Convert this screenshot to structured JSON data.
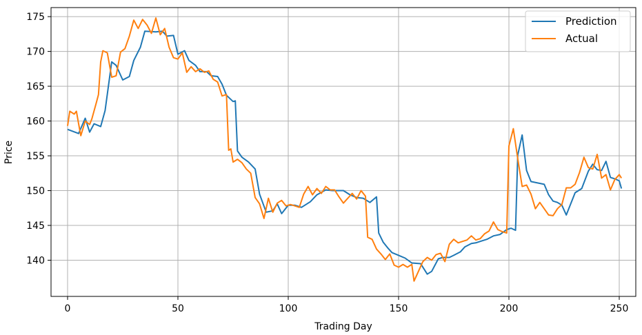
{
  "chart_data": {
    "type": "line",
    "title": "",
    "xlabel": "Trading Day",
    "ylabel": "Price",
    "xlim": [
      -7.5,
      257.5
    ],
    "ylim": [
      134.8,
      176.3
    ],
    "xticks": [
      0,
      50,
      100,
      150,
      200,
      250
    ],
    "yticks": [
      140,
      145,
      150,
      155,
      160,
      165,
      170,
      175
    ],
    "grid": true,
    "legend": {
      "placement": "top-right"
    },
    "series": [
      {
        "name": "Prediction",
        "color": "#1f77b4",
        "points": [
          [
            0,
            158.8
          ],
          [
            5,
            158.2
          ],
          [
            8,
            160.4
          ],
          [
            10,
            158.4
          ],
          [
            12,
            159.6
          ],
          [
            15,
            159.2
          ],
          [
            17,
            161.5
          ],
          [
            20,
            168.5
          ],
          [
            22,
            168.0
          ],
          [
            25,
            165.9
          ],
          [
            28,
            166.4
          ],
          [
            30,
            168.7
          ],
          [
            33,
            170.6
          ],
          [
            35,
            172.9
          ],
          [
            40,
            172.8
          ],
          [
            43,
            172.9
          ],
          [
            45,
            172.2
          ],
          [
            48,
            172.3
          ],
          [
            50,
            169.6
          ],
          [
            53,
            170.1
          ],
          [
            55,
            168.7
          ],
          [
            58,
            168.0
          ],
          [
            60,
            167.1
          ],
          [
            63,
            167.1
          ],
          [
            65,
            166.5
          ],
          [
            68,
            166.4
          ],
          [
            70,
            165.3
          ],
          [
            72,
            163.7
          ],
          [
            75,
            162.8
          ],
          [
            76,
            162.9
          ],
          [
            77,
            155.7
          ],
          [
            79,
            154.8
          ],
          [
            82,
            154.1
          ],
          [
            85,
            153.1
          ],
          [
            87,
            149.5
          ],
          [
            90,
            146.9
          ],
          [
            93,
            147.1
          ],
          [
            95,
            148.1
          ],
          [
            97,
            146.7
          ],
          [
            100,
            147.9
          ],
          [
            103,
            147.9
          ],
          [
            106,
            147.6
          ],
          [
            110,
            148.4
          ],
          [
            113,
            149.4
          ],
          [
            117,
            150.1
          ],
          [
            120,
            150.0
          ],
          [
            123,
            150.0
          ],
          [
            125,
            150.0
          ],
          [
            128,
            149.4
          ],
          [
            131,
            149.0
          ],
          [
            134,
            148.9
          ],
          [
            137,
            148.3
          ],
          [
            140,
            149.1
          ],
          [
            141,
            143.9
          ],
          [
            143,
            142.6
          ],
          [
            145,
            141.8
          ],
          [
            147,
            141.1
          ],
          [
            150,
            140.7
          ],
          [
            153,
            140.3
          ],
          [
            156,
            139.6
          ],
          [
            160,
            139.5
          ],
          [
            163,
            138.0
          ],
          [
            165,
            138.4
          ],
          [
            168,
            140.2
          ],
          [
            170,
            140.4
          ],
          [
            173,
            140.4
          ],
          [
            175,
            140.7
          ],
          [
            178,
            141.2
          ],
          [
            180,
            141.9
          ],
          [
            183,
            142.4
          ],
          [
            185,
            142.5
          ],
          [
            188,
            142.8
          ],
          [
            190,
            143.0
          ],
          [
            193,
            143.5
          ],
          [
            196,
            143.7
          ],
          [
            199,
            144.4
          ],
          [
            201,
            144.6
          ],
          [
            203,
            144.3
          ],
          [
            204,
            155.1
          ],
          [
            206,
            158.0
          ],
          [
            208,
            152.9
          ],
          [
            210,
            151.3
          ],
          [
            213,
            151.1
          ],
          [
            216,
            150.9
          ],
          [
            218,
            149.4
          ],
          [
            220,
            148.5
          ],
          [
            222,
            148.3
          ],
          [
            224,
            147.9
          ],
          [
            226,
            146.5
          ],
          [
            228,
            148.1
          ],
          [
            230,
            149.7
          ],
          [
            233,
            150.3
          ],
          [
            236,
            152.8
          ],
          [
            238,
            153.8
          ],
          [
            240,
            153.0
          ],
          [
            242,
            152.9
          ],
          [
            244,
            154.2
          ],
          [
            246,
            151.9
          ],
          [
            248,
            151.7
          ],
          [
            250,
            151.4
          ],
          [
            251,
            150.3
          ]
        ]
      },
      {
        "name": "Actual",
        "color": "#ff7f0e",
        "points": [
          [
            0,
            159.3
          ],
          [
            1,
            161.4
          ],
          [
            3,
            161.0
          ],
          [
            4,
            161.4
          ],
          [
            5,
            159.6
          ],
          [
            6,
            157.9
          ],
          [
            8,
            160.0
          ],
          [
            10,
            159.5
          ],
          [
            11,
            160.3
          ],
          [
            13,
            162.6
          ],
          [
            14,
            163.8
          ],
          [
            15,
            168.5
          ],
          [
            16,
            170.1
          ],
          [
            18,
            169.8
          ],
          [
            20,
            166.3
          ],
          [
            22,
            166.5
          ],
          [
            24,
            169.9
          ],
          [
            26,
            170.4
          ],
          [
            28,
            172.2
          ],
          [
            30,
            174.5
          ],
          [
            32,
            173.3
          ],
          [
            34,
            174.6
          ],
          [
            36,
            173.8
          ],
          [
            38,
            172.6
          ],
          [
            40,
            174.8
          ],
          [
            42,
            172.4
          ],
          [
            44,
            173.3
          ],
          [
            46,
            170.6
          ],
          [
            48,
            169.1
          ],
          [
            50,
            168.9
          ],
          [
            52,
            169.8
          ],
          [
            54,
            167.0
          ],
          [
            56,
            167.8
          ],
          [
            58,
            167.1
          ],
          [
            60,
            167.5
          ],
          [
            62,
            167.0
          ],
          [
            64,
            167.2
          ],
          [
            66,
            166.0
          ],
          [
            68,
            165.6
          ],
          [
            70,
            163.6
          ],
          [
            72,
            163.8
          ],
          [
            73,
            155.8
          ],
          [
            74,
            156.0
          ],
          [
            75,
            154.1
          ],
          [
            77,
            154.5
          ],
          [
            79,
            154.0
          ],
          [
            81,
            153.1
          ],
          [
            83,
            152.5
          ],
          [
            85,
            149.0
          ],
          [
            87,
            148.1
          ],
          [
            89,
            146.0
          ],
          [
            91,
            148.9
          ],
          [
            93,
            146.9
          ],
          [
            95,
            148.2
          ],
          [
            97,
            148.6
          ],
          [
            99,
            147.8
          ],
          [
            101,
            148.0
          ],
          [
            103,
            147.8
          ],
          [
            105,
            147.6
          ],
          [
            107,
            149.5
          ],
          [
            109,
            150.6
          ],
          [
            111,
            149.4
          ],
          [
            113,
            150.3
          ],
          [
            115,
            149.6
          ],
          [
            117,
            150.6
          ],
          [
            119,
            150.1
          ],
          [
            121,
            150.1
          ],
          [
            123,
            149.1
          ],
          [
            125,
            148.2
          ],
          [
            127,
            148.9
          ],
          [
            129,
            149.6
          ],
          [
            131,
            148.8
          ],
          [
            133,
            150.0
          ],
          [
            135,
            149.2
          ],
          [
            136,
            143.3
          ],
          [
            138,
            143.0
          ],
          [
            140,
            141.6
          ],
          [
            142,
            140.9
          ],
          [
            144,
            140.1
          ],
          [
            146,
            140.9
          ],
          [
            148,
            139.3
          ],
          [
            150,
            139.0
          ],
          [
            152,
            139.4
          ],
          [
            154,
            139.0
          ],
          [
            156,
            139.4
          ],
          [
            157,
            137.0
          ],
          [
            159,
            138.4
          ],
          [
            161,
            139.8
          ],
          [
            163,
            140.4
          ],
          [
            165,
            140.0
          ],
          [
            167,
            140.8
          ],
          [
            169,
            141.0
          ],
          [
            171,
            139.8
          ],
          [
            173,
            142.3
          ],
          [
            175,
            143.0
          ],
          [
            177,
            142.5
          ],
          [
            179,
            142.7
          ],
          [
            181,
            142.9
          ],
          [
            183,
            143.5
          ],
          [
            185,
            142.9
          ],
          [
            187,
            143.1
          ],
          [
            189,
            143.8
          ],
          [
            191,
            144.2
          ],
          [
            193,
            145.5
          ],
          [
            195,
            144.4
          ],
          [
            197,
            144.1
          ],
          [
            199,
            143.9
          ],
          [
            200,
            156.4
          ],
          [
            202,
            158.9
          ],
          [
            204,
            154.6
          ],
          [
            206,
            150.6
          ],
          [
            208,
            150.8
          ],
          [
            210,
            149.5
          ],
          [
            212,
            147.4
          ],
          [
            214,
            148.3
          ],
          [
            216,
            147.4
          ],
          [
            218,
            146.5
          ],
          [
            220,
            146.4
          ],
          [
            222,
            147.4
          ],
          [
            224,
            148.0
          ],
          [
            226,
            150.4
          ],
          [
            228,
            150.4
          ],
          [
            230,
            150.9
          ],
          [
            232,
            152.6
          ],
          [
            234,
            154.8
          ],
          [
            236,
            153.3
          ],
          [
            238,
            153.1
          ],
          [
            240,
            155.2
          ],
          [
            242,
            151.8
          ],
          [
            244,
            152.3
          ],
          [
            246,
            150.1
          ],
          [
            248,
            151.6
          ],
          [
            250,
            152.3
          ],
          [
            251,
            151.8
          ]
        ]
      }
    ]
  }
}
